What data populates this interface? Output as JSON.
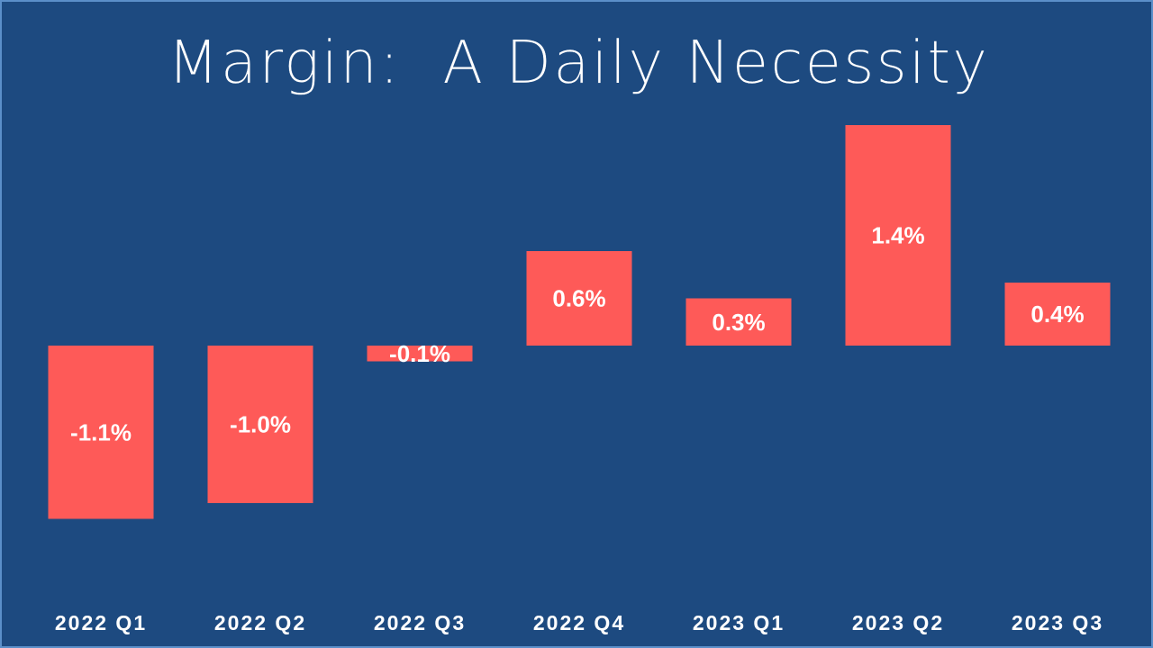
{
  "chart_data": {
    "type": "bar",
    "title": "Margin:  A Daily Necessity",
    "categories": [
      "2022 Q1",
      "2022 Q2",
      "2022 Q3",
      "2022 Q4",
      "2023 Q1",
      "2023 Q2",
      "2023 Q3"
    ],
    "values": [
      -1.1,
      -1.0,
      -0.1,
      0.6,
      0.3,
      1.4,
      0.4
    ],
    "data_labels": [
      "-1.1%",
      "-1.0%",
      "-0.1%",
      "0.6%",
      "0.3%",
      "1.4%",
      "0.4%"
    ],
    "xlabel": "",
    "ylabel": "",
    "ylim": [
      -1.1,
      1.4
    ],
    "grid": false,
    "legend": "none",
    "colors": {
      "background": "#1d4a80",
      "bar": "#fe5a58",
      "text": "#ffffff",
      "border": "#5b8fc9"
    }
  }
}
